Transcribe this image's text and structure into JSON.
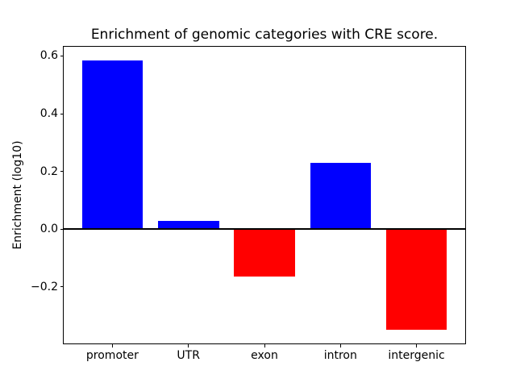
{
  "figure": {
    "background_color": "#ffffff"
  },
  "chart_data": {
    "type": "bar",
    "title": "Enrichment of genomic categories with CRE score.",
    "xlabel": "",
    "ylabel": "Enrichment (log10)",
    "categories": [
      "promoter",
      "UTR",
      "exon",
      "intron",
      "intergenic"
    ],
    "values": [
      0.585,
      0.027,
      -0.165,
      0.23,
      -0.35
    ],
    "bar_colors": [
      "#0000ff",
      "#0000ff",
      "#ff0000",
      "#0000ff",
      "#ff0000"
    ],
    "positive_color": "#0000ff",
    "negative_color": "#ff0000",
    "baseline_value": 0,
    "baseline_line_color": "#000000",
    "yticks": {
      "values": [
        0.6,
        0.4,
        0.2,
        0.0,
        -0.2
      ],
      "labels": [
        "0.6",
        "0.4",
        "0.2",
        "0.0",
        "−0.2"
      ]
    },
    "ylim": [
      -0.397,
      0.632
    ],
    "xlim": [
      -0.64,
      4.64
    ],
    "bar_width": 0.8,
    "grid": false,
    "legend": "none",
    "text_color": "#000000",
    "frame_color": "#000000"
  }
}
